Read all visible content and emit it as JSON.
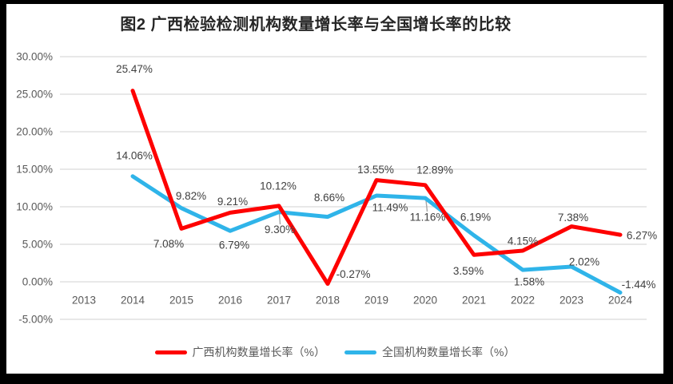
{
  "chart_data": {
    "type": "line",
    "title": "图2 广西检验检测机构数量增长率与全国增长率的比较",
    "categories": [
      "2013",
      "2014",
      "2015",
      "2016",
      "2017",
      "2018",
      "2019",
      "2020",
      "2021",
      "2022",
      "2023",
      "2024"
    ],
    "series": [
      {
        "id": "guangxi",
        "name": "广西机构数量增长率（%）",
        "color": "#FE0000",
        "values": [
          null,
          25.47,
          7.08,
          9.21,
          10.12,
          -0.27,
          13.55,
          12.89,
          3.59,
          4.15,
          7.38,
          6.27
        ],
        "labels": [
          null,
          "25.47%",
          "7.08%",
          "9.21%",
          "10.12%",
          "-0.27%",
          "13.55%",
          "12.89%",
          "3.59%",
          "4.15%",
          "7.38%",
          "6.27%"
        ],
        "label_offsets": [
          [
            0,
            0
          ],
          [
            2,
            -27
          ],
          [
            -16,
            19
          ],
          [
            3,
            -14
          ],
          [
            -1,
            -25
          ],
          [
            32,
            -12
          ],
          [
            -1,
            -13
          ],
          [
            12,
            -19
          ],
          [
            -7,
            20
          ],
          [
            0,
            -12
          ],
          [
            2,
            -11
          ],
          [
            27,
            1
          ]
        ]
      },
      {
        "id": "national",
        "name": "全国机构数量增长率（%）",
        "color": "#2FB4E9",
        "values": [
          null,
          14.06,
          9.82,
          6.79,
          9.3,
          8.66,
          11.49,
          11.16,
          6.19,
          1.58,
          2.02,
          -1.44
        ],
        "labels": [
          null,
          "14.06%",
          "9.82%",
          "6.79%",
          "9.30%",
          "8.66%",
          "11.49%",
          "11.16%",
          "6.19%",
          "1.58%",
          "2.02%",
          "-1.44%"
        ],
        "label_offsets": [
          [
            0,
            0
          ],
          [
            2,
            -26
          ],
          [
            12,
            -15
          ],
          [
            5,
            18
          ],
          [
            1,
            22
          ],
          [
            2,
            -24
          ],
          [
            17,
            15
          ],
          [
            3,
            24
          ],
          [
            2,
            -23
          ],
          [
            8,
            15
          ],
          [
            16,
            -6
          ],
          [
            23,
            -10
          ]
        ]
      }
    ],
    "y_ticks": [
      "30.00%",
      "25.00%",
      "20.00%",
      "15.00%",
      "10.00%",
      "5.00%",
      "0.00%",
      "-5.00%"
    ],
    "y_tick_values": [
      30,
      25,
      20,
      15,
      10,
      5,
      0,
      -5
    ],
    "ylim": [
      -5,
      30
    ],
    "xlabel": "",
    "ylabel": "",
    "grid": true,
    "legend_position": "bottom",
    "colors": {
      "grid": "#D9D9D9",
      "axis_text": "#595959",
      "data_label": "#404040",
      "leader": "#A6A6A6"
    },
    "leader_lines": [
      [
        341.5,
        263,
        342.5,
        276
      ],
      [
        525,
        246,
        526.5,
        260
      ]
    ]
  }
}
